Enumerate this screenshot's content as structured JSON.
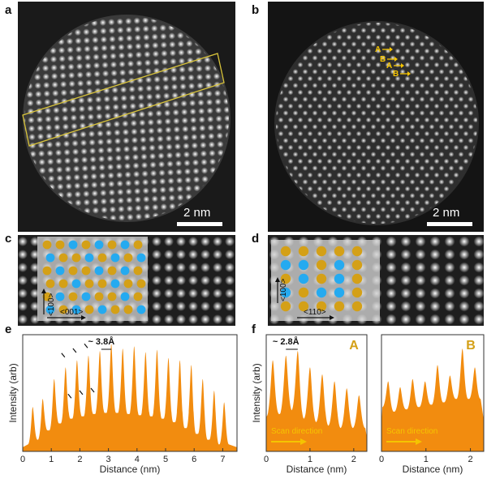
{
  "panels": {
    "a": {
      "label": "a",
      "scale_bar": "2 nm"
    },
    "b": {
      "label": "b",
      "scale_bar": "2 nm",
      "stack_labels": [
        "A",
        "B",
        "A",
        "B"
      ]
    },
    "c": {
      "label": "c",
      "dir_vertical": "<100>",
      "dir_horizontal": "<001>"
    },
    "d": {
      "label": "d",
      "dir_vertical": "<100>",
      "dir_horizontal": "<110>"
    },
    "e": {
      "label": "e",
      "annotation": "~ 3.8Å"
    },
    "f": {
      "label": "f",
      "annotation": "~ 2.8Å",
      "subplot_labels": [
        "A",
        "B"
      ],
      "scan_text": "Scan direction"
    }
  },
  "colors": {
    "gold": "#d4a017",
    "cyan": "#25aaf0",
    "orange": "#f28c0f",
    "scan_arrow": "#f5c400",
    "rect": "#d8c33a"
  },
  "chart_data": [
    {
      "type": "area",
      "panel": "e",
      "xlabel": "Distance (nm)",
      "ylabel": "Intensity (arb)",
      "xlim": [
        0,
        7.5
      ],
      "xticks": [
        0,
        1,
        2,
        3,
        4,
        5,
        6,
        7
      ],
      "peaks_x": [
        0.35,
        0.7,
        1.1,
        1.5,
        1.9,
        2.3,
        2.7,
        3.1,
        3.5,
        3.9,
        4.3,
        4.7,
        5.1,
        5.5,
        5.9,
        6.3,
        6.7,
        7.05
      ],
      "peaks_y": [
        0.38,
        0.45,
        0.62,
        0.72,
        0.78,
        0.82,
        0.86,
        0.92,
        0.88,
        0.9,
        0.85,
        0.87,
        0.8,
        0.78,
        0.74,
        0.62,
        0.52,
        0.42
      ],
      "baseline_y": [
        0.06,
        0.1,
        0.18,
        0.24,
        0.28,
        0.3,
        0.32,
        0.33,
        0.33,
        0.32,
        0.31,
        0.3,
        0.28,
        0.25,
        0.2,
        0.15,
        0.1,
        0.06
      ]
    },
    {
      "type": "area",
      "panel": "f-A",
      "name": "A",
      "xlabel": "Distance (nm)",
      "ylabel": "Intensity (arb)",
      "xlim": [
        0,
        2.3
      ],
      "xticks": [
        0,
        1,
        2
      ],
      "peaks_x": [
        0.15,
        0.45,
        0.72,
        1.0,
        1.28,
        1.56,
        1.84,
        2.12
      ],
      "peaks_y": [
        0.78,
        0.82,
        0.86,
        0.72,
        0.66,
        0.6,
        0.54,
        0.48
      ],
      "valleys_y": [
        0.3,
        0.32,
        0.35,
        0.28,
        0.25,
        0.22,
        0.2
      ]
    },
    {
      "type": "area",
      "panel": "f-B",
      "name": "B",
      "xlabel": "Distance (nm)",
      "xlim": [
        0,
        2.3
      ],
      "xticks": [
        0,
        1,
        2
      ],
      "peaks_x": [
        0.15,
        0.42,
        0.7,
        0.98,
        1.26,
        1.54,
        1.82,
        2.1
      ],
      "peaks_y": [
        0.6,
        0.55,
        0.62,
        0.6,
        0.74,
        0.65,
        0.88,
        0.72
      ],
      "valleys_y": [
        0.38,
        0.34,
        0.36,
        0.38,
        0.4,
        0.42,
        0.45
      ]
    }
  ]
}
